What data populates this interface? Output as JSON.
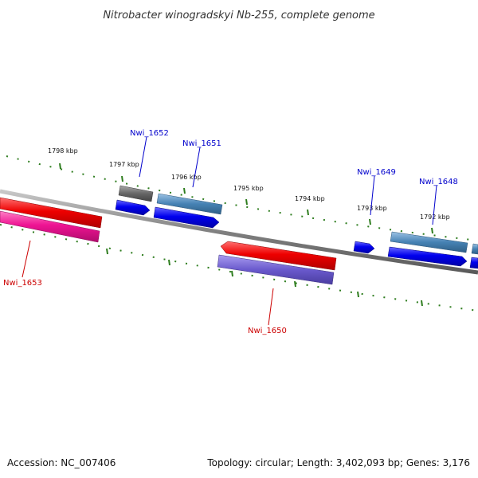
{
  "title": "Nitrobacter winogradskyi Nb-255, complete genome",
  "footer": {
    "accession": "Accession: NC_007406",
    "summary": "Topology: circular; Length: 3,402,093 bp; Genes: 3,176"
  },
  "colors": {
    "backbone": "#808080",
    "tick": "#2e7d1e",
    "label_forward": "#0000cc",
    "label_reverse": "#cc0000",
    "cds_blue": "#0000ee",
    "cds_steel": "#4682b4",
    "cds_gray": "#666666",
    "cds_red": "#ee0000",
    "cds_pink": "#ee1493",
    "cds_purple": "#6a5acd"
  },
  "ticks": [
    {
      "label": "1798 kbp"
    },
    {
      "label": "1797 kbp"
    },
    {
      "label": "1796 kbp"
    },
    {
      "label": "1795 kbp"
    },
    {
      "label": "1794 kbp"
    },
    {
      "label": "1793 kbp"
    },
    {
      "label": "1792 kbp"
    }
  ],
  "genes": [
    {
      "label": "Nwi_1652",
      "strand": "forward"
    },
    {
      "label": "Nwi_1651",
      "strand": "forward"
    },
    {
      "label": "Nwi_1649",
      "strand": "forward"
    },
    {
      "label": "Nwi_1648",
      "strand": "forward"
    },
    {
      "label": "Nwi_1653",
      "strand": "reverse"
    },
    {
      "label": "Nwi_1650",
      "strand": "reverse"
    }
  ]
}
